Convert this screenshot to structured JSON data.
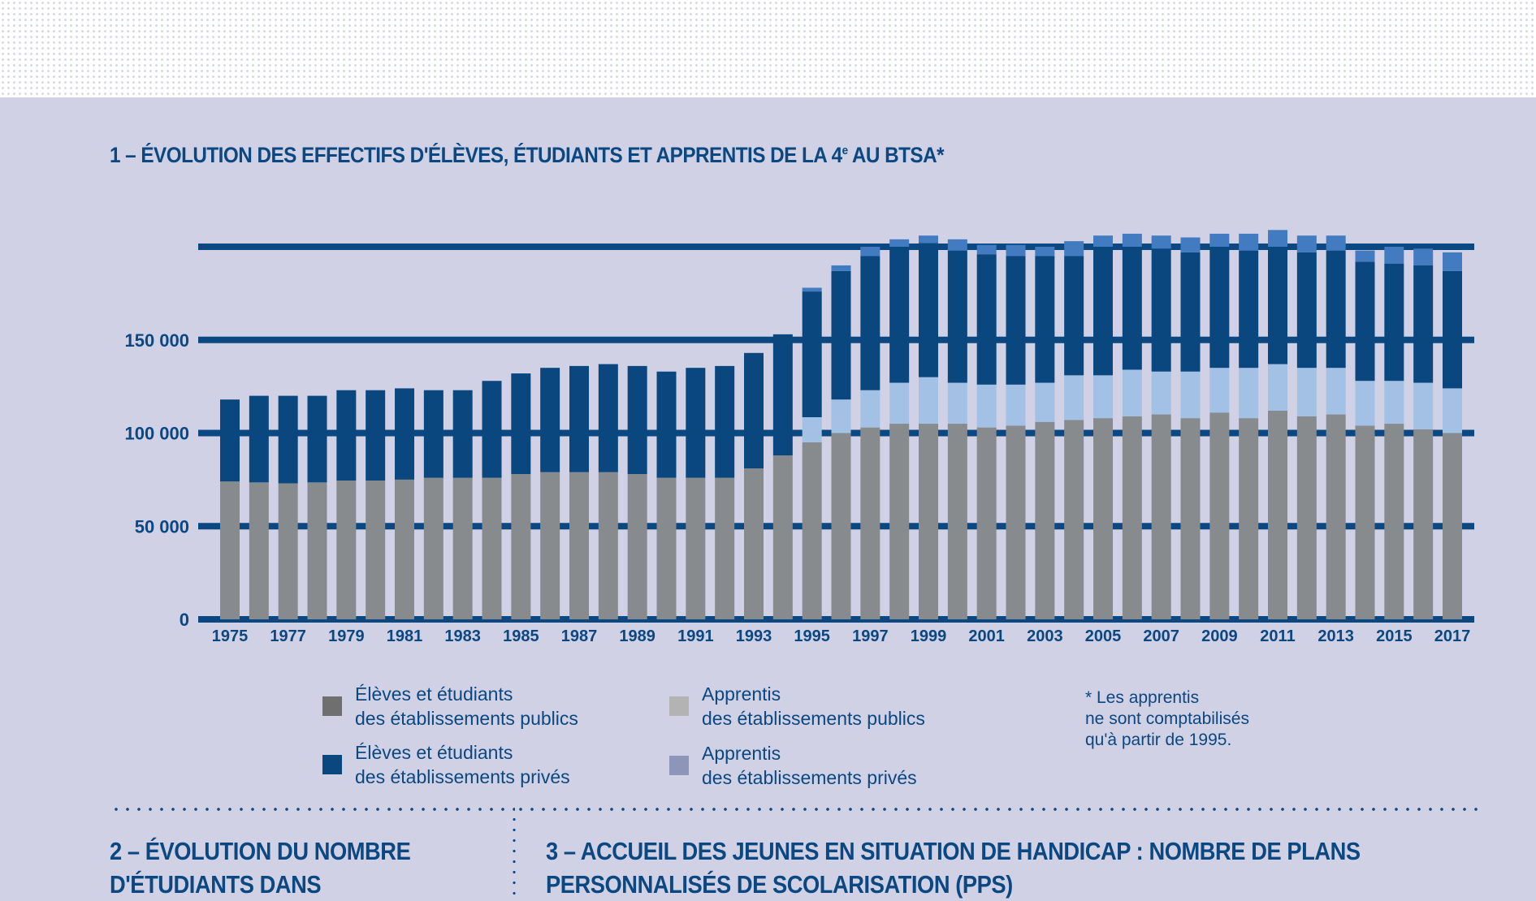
{
  "title": {
    "prefix": "1 – ÉVOLUTION DES EFFECTIFS D'ÉLÈVES, ÉTUDIANTS ET APPRENTIS DE LA 4",
    "sup": "e",
    "suffix": " AU BTSA*"
  },
  "legend": [
    {
      "line1": "Élèves et étudiants",
      "line2": "des établissements publics",
      "color": "#6f6f6f"
    },
    {
      "line1": "Élèves et étudiants",
      "line2": "des établissements privés",
      "color": "#0a477f"
    },
    {
      "line1": "Apprentis",
      "line2": "des établissements publics",
      "color": "#b3b3b3"
    },
    {
      "line1": "Apprentis",
      "line2": "des établissements privés",
      "color": "#8d96b9"
    }
  ],
  "footnote": {
    "line1": "*  Les apprentis",
    "line2": "ne sont comptabilisés",
    "line3": "qu'à partir de 1995."
  },
  "section2": {
    "line1": "2 – ÉVOLUTION DU NOMBRE",
    "line2": "D'ÉTUDIANTS DANS"
  },
  "section3": {
    "line1": "3 – ACCUEIL DES JEUNES EN SITUATION DE HANDICAP : NOMBRE DE PLANS",
    "line2": "PERSONNALISÉS DE SCOLARISATION (PPS)"
  },
  "chart_data": {
    "type": "bar",
    "stacked": true,
    "title": "1 – ÉVOLUTION DES EFFECTIFS D'ÉLÈVES, ÉTUDIANTS ET APPRENTIS DE LA 4e AU BTSA*",
    "xlabel": "",
    "ylabel": "",
    "ylim": [
      0,
      200000
    ],
    "yticks": [
      0,
      50000,
      100000,
      150000,
      200000
    ],
    "ytick_labels": [
      "0",
      "50 000",
      "100 000",
      "150 000",
      ""
    ],
    "grid": true,
    "legend_position": "bottom",
    "categories": [
      1975,
      1976,
      1977,
      1978,
      1979,
      1980,
      1981,
      1982,
      1983,
      1984,
      1985,
      1986,
      1987,
      1988,
      1989,
      1990,
      1991,
      1992,
      1993,
      1994,
      1995,
      1996,
      1997,
      1998,
      1999,
      2000,
      2001,
      2002,
      2003,
      2004,
      2005,
      2006,
      2007,
      2008,
      2009,
      2010,
      2011,
      2012,
      2013,
      2014,
      2015,
      2016,
      2017
    ],
    "xtick_labels": [
      "1975",
      "1977",
      "1979",
      "1981",
      "1983",
      "1985",
      "1987",
      "1989",
      "1991",
      "1993",
      "1995",
      "1997",
      "1999",
      "2001",
      "2003",
      "2005",
      "2007",
      "2009",
      "2011",
      "2013",
      "2015",
      "2017"
    ],
    "series": [
      {
        "name": "Élèves et étudiants des établissements publics",
        "color": "#878b8e",
        "values": [
          74000,
          73500,
          73000,
          73500,
          74500,
          74500,
          75000,
          76000,
          76000,
          76000,
          78000,
          79000,
          79000,
          79000,
          78000,
          76000,
          76000,
          76000,
          81000,
          88000,
          95000,
          100000,
          103000,
          105000,
          105000,
          105000,
          103000,
          104000,
          106000,
          107000,
          108000,
          109000,
          110000,
          108000,
          111000,
          108000,
          112000,
          109000,
          110000,
          104000,
          105000,
          102000,
          100000
        ]
      },
      {
        "name": "Apprentis des établissements publics",
        "color": "#a2c1e5",
        "values": [
          0,
          0,
          0,
          0,
          0,
          0,
          0,
          0,
          0,
          0,
          0,
          0,
          0,
          0,
          0,
          0,
          0,
          0,
          0,
          0,
          13500,
          18000,
          20000,
          22000,
          25000,
          22000,
          23000,
          22000,
          21000,
          24000,
          23000,
          25000,
          23000,
          25000,
          24000,
          27000,
          25000,
          26000,
          25000,
          24000,
          23000,
          25000,
          24000
        ]
      },
      {
        "name": "Élèves et étudiants des établissements privés",
        "color": "#0a477f",
        "values": [
          44000,
          46500,
          47000,
          46500,
          48500,
          48500,
          49000,
          47000,
          47000,
          52000,
          54000,
          56000,
          57000,
          58000,
          58000,
          57000,
          59000,
          60000,
          62000,
          65000,
          67500,
          69000,
          72000,
          73000,
          72000,
          71000,
          70000,
          69000,
          68000,
          64000,
          69000,
          66000,
          66000,
          64000,
          65000,
          63000,
          63000,
          62000,
          63000,
          64000,
          63000,
          63000,
          63000
        ]
      },
      {
        "name": "Apprentis des établissements privés",
        "color": "#427bbf",
        "values": [
          0,
          0,
          0,
          0,
          0,
          0,
          0,
          0,
          0,
          0,
          0,
          0,
          0,
          0,
          0,
          0,
          0,
          0,
          0,
          0,
          2000,
          3000,
          5000,
          4000,
          4000,
          6000,
          5000,
          6000,
          5000,
          8000,
          6000,
          7000,
          7000,
          8000,
          7000,
          9000,
          9000,
          9000,
          8000,
          6000,
          9000,
          9000,
          10000
        ]
      }
    ],
    "annotations": [
      "* Les apprentis ne sont comptabilisés qu'à partir de 1995."
    ]
  }
}
